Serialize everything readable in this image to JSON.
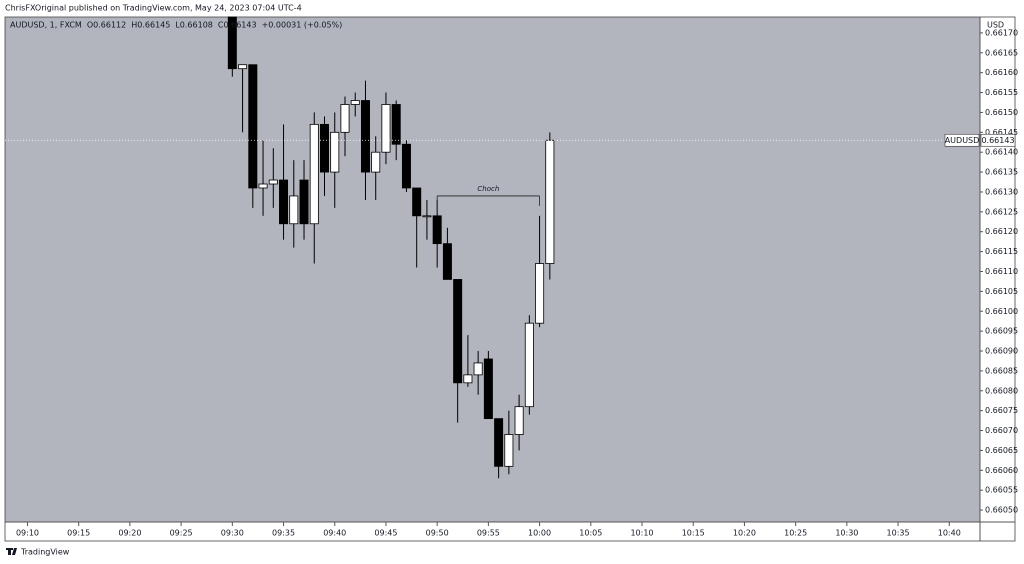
{
  "chart_data": {
    "type": "candlestick",
    "attribution": "ChrisFXOriginal published on TradingView.com, May 24, 2023 07:04 UTC-4",
    "legend": [
      "AUDUSD, 1, FXCM",
      "O0.66112",
      "H0.66145",
      "L0.66108",
      "C0.66143",
      "+0.00031 (+0.05%)"
    ],
    "currency": "USD",
    "brand": "TradingView",
    "up_color": "#ffffff",
    "down_color": "#000000",
    "background": "#b2b5be",
    "x": [
      "09:30",
      "09:31",
      "09:32",
      "09:33",
      "09:34",
      "09:35",
      "09:36",
      "09:37",
      "09:38",
      "09:39",
      "09:40",
      "09:41",
      "09:42",
      "09:43",
      "09:44",
      "09:45",
      "09:46",
      "09:47",
      "09:48",
      "09:49",
      "09:50",
      "09:51",
      "09:52",
      "09:53",
      "09:54",
      "09:55",
      "09:56",
      "09:57",
      "09:58",
      "09:59",
      "10:00",
      "10:01"
    ],
    "open": [
      0.66175,
      0.66161,
      0.66162,
      0.66131,
      0.66132,
      0.66133,
      0.66122,
      0.66133,
      0.66122,
      0.66147,
      0.66135,
      0.66145,
      0.66152,
      0.66153,
      0.66135,
      0.6614,
      0.66152,
      0.66142,
      0.66131,
      0.66124,
      0.66124,
      0.66117,
      0.66108,
      0.66082,
      0.66084,
      0.66088,
      0.66073,
      0.66061,
      0.66069,
      0.66076,
      0.66097,
      0.66112
    ],
    "high": [
      0.66177,
      0.66162,
      0.66162,
      0.66143,
      0.66141,
      0.66147,
      0.66138,
      0.66138,
      0.6615,
      0.66149,
      0.6615,
      0.66154,
      0.66155,
      0.66158,
      0.66144,
      0.66155,
      0.66153,
      0.66143,
      0.66131,
      0.66128,
      0.66128,
      0.66121,
      0.66108,
      0.66094,
      0.6609,
      0.6609,
      0.66073,
      0.66075,
      0.66079,
      0.66099,
      0.66124,
      0.66145
    ],
    "low": [
      0.66159,
      0.66145,
      0.66126,
      0.66124,
      0.66126,
      0.66118,
      0.66116,
      0.66118,
      0.66112,
      0.66129,
      0.66126,
      0.66139,
      0.66149,
      0.66128,
      0.66128,
      0.66137,
      0.66138,
      0.6613,
      0.66111,
      0.66118,
      0.66111,
      0.66108,
      0.66072,
      0.66081,
      0.66079,
      0.66073,
      0.66058,
      0.66059,
      0.66065,
      0.66074,
      0.66096,
      0.66108
    ],
    "close": [
      0.66161,
      0.66162,
      0.66131,
      0.66132,
      0.66133,
      0.66122,
      0.66129,
      0.66122,
      0.66147,
      0.66135,
      0.66145,
      0.66152,
      0.66153,
      0.66135,
      0.6614,
      0.66152,
      0.66142,
      0.66131,
      0.66124,
      0.66124,
      0.66117,
      0.66108,
      0.66082,
      0.66084,
      0.66087,
      0.66073,
      0.66061,
      0.66069,
      0.66076,
      0.66097,
      0.66112,
      0.66143
    ],
    "annotation": {
      "text": "Choch",
      "value": 0.66129,
      "x_start": "09:50",
      "x_end": "10:00"
    },
    "price_line": {
      "label": "AUDUSD",
      "value": 0.66143
    },
    "xlim": [
      "09:08",
      "10:43"
    ],
    "xticks": [
      "09:10",
      "09:15",
      "09:20",
      "09:25",
      "09:30",
      "09:35",
      "09:40",
      "09:45",
      "09:50",
      "09:55",
      "10:00",
      "10:05",
      "10:10",
      "10:15",
      "10:20",
      "10:25",
      "10:30",
      "10:35",
      "10:40"
    ],
    "ylim": [
      0.66047,
      0.66174
    ],
    "yticks": [
      {
        "value": 0.6617,
        "label": "0.66170"
      },
      {
        "value": 0.66165,
        "label": "0.66165"
      },
      {
        "value": 0.6616,
        "label": "0.66160"
      },
      {
        "value": 0.66155,
        "label": "0.66155"
      },
      {
        "value": 0.6615,
        "label": "0.66150"
      },
      {
        "value": 0.66145,
        "label": "0.66145"
      },
      {
        "value": 0.6614,
        "label": "0.66140"
      },
      {
        "value": 0.66135,
        "label": "0.66135"
      },
      {
        "value": 0.6613,
        "label": "0.66130"
      },
      {
        "value": 0.66125,
        "label": "0.66125"
      },
      {
        "value": 0.6612,
        "label": "0.66120"
      },
      {
        "value": 0.66115,
        "label": "0.66115"
      },
      {
        "value": 0.6611,
        "label": "0.66110"
      },
      {
        "value": 0.66105,
        "label": "0.66105"
      },
      {
        "value": 0.661,
        "label": "0.66100"
      },
      {
        "value": 0.66095,
        "label": "0.66095"
      },
      {
        "value": 0.6609,
        "label": "0.66090"
      },
      {
        "value": 0.66085,
        "label": "0.66085"
      },
      {
        "value": 0.6608,
        "label": "0.66080"
      },
      {
        "value": 0.66075,
        "label": "0.66075"
      },
      {
        "value": 0.6607,
        "label": "0.66070"
      },
      {
        "value": 0.66065,
        "label": "0.66065"
      },
      {
        "value": 0.6606,
        "label": "0.66060"
      },
      {
        "value": 0.66055,
        "label": "0.66055"
      },
      {
        "value": 0.6605,
        "label": "0.66050"
      }
    ]
  }
}
